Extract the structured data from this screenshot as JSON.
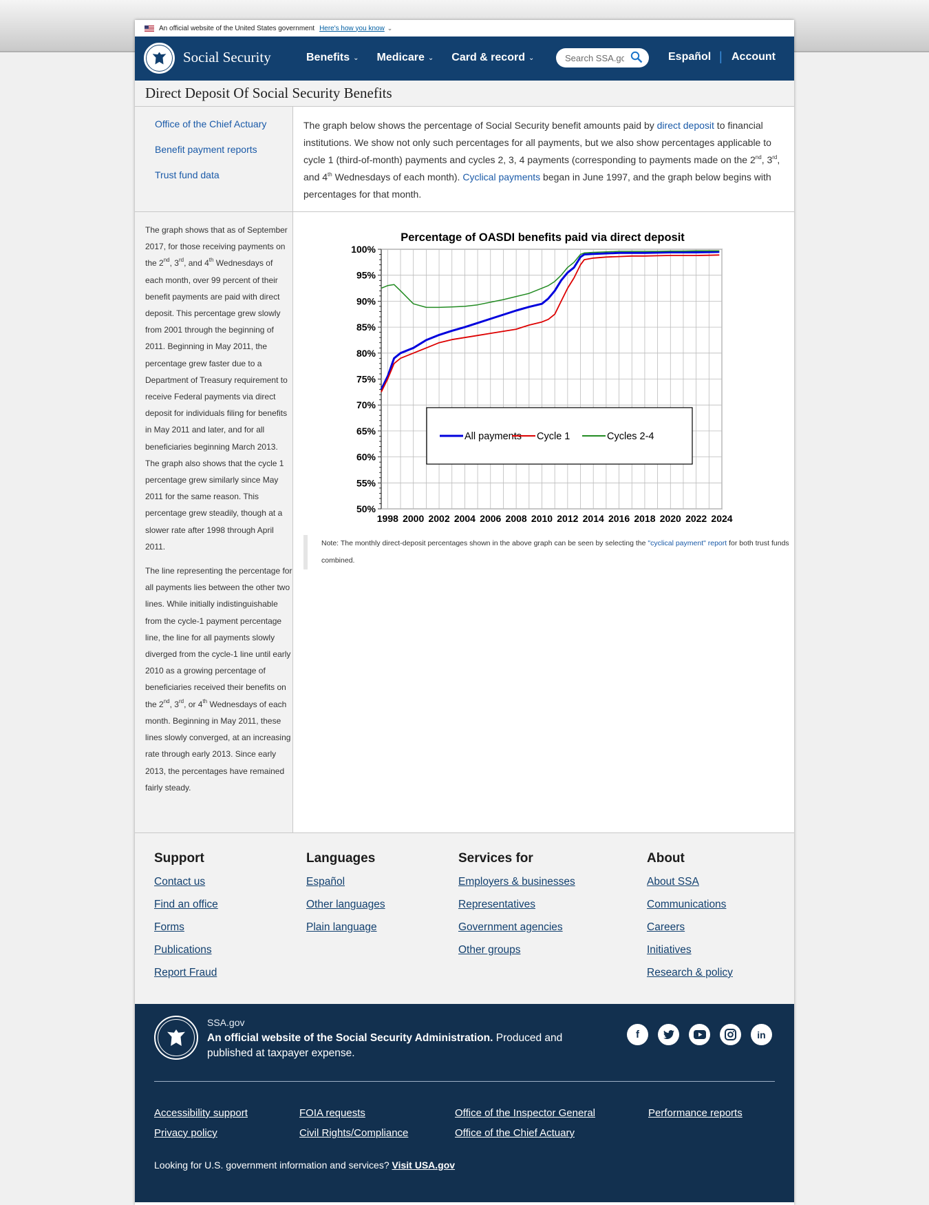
{
  "gov_banner": {
    "text": "An official website of the United States government",
    "how_link": "Here's how you know"
  },
  "header": {
    "brand": "Social Security",
    "nav": [
      "Benefits",
      "Medicare",
      "Card & record"
    ],
    "search_placeholder": "Search SSA.gov",
    "espanol": "Español",
    "separator": "|",
    "account": "Account"
  },
  "page_title": "Direct Deposit Of Social Security Benefits",
  "left_nav": [
    "Office of the Chief Actuary",
    "Benefit payment reports",
    "Trust fund data"
  ],
  "intro": {
    "t1": "The graph below shows the percentage of Social Security benefit amounts paid by ",
    "link1": "direct deposit",
    "t2": " to financial institutions. We show not only such percentages for all payments, but we also show percentages applicable to cycle 1 (third-of-month) payments and cycles 2, 3, 4 payments (corresponding to payments made on the 2",
    "sup_nd": "nd",
    "t3": ", 3",
    "sup_rd": "rd",
    "t4": ", and 4",
    "sup_th": "th",
    "t5": " Wednesdays of each month). ",
    "link2": "Cyclical payments",
    "t6": " began in June 1997, and the graph below begins with percentages for that month."
  },
  "sidebar": {
    "p1a": "The graph shows that as of September 2017, for those receiving payments on the 2",
    "p1b": ", 3",
    "p1c": ", and 4",
    "p1d": " Wednesdays of each month, over 99 percent of their benefit payments are paid with direct deposit. This percentage grew slowly from 2001 through the beginning of 2011. Beginning in May 2011, the percentage grew faster due to a Department of Treasury requirement to receive Federal payments via direct deposit for individuals filing for benefits in May 2011 and later, and for all beneficiaries beginning March 2013. The graph also shows that the cycle 1 percentage grew similarly since May 2011 for the same reason. This percentage grew steadily, though at a slower rate after 1998 through April 2011.",
    "p2a": "The line representing the percentage for all payments lies between the other two lines. While initially indistinguishable from the cycle-1 payment percentage line, the line for all payments slowly diverged from the cycle-1 line until early 2010 as a growing percentage of beneficiaries received their benefits on the 2",
    "p2b": ", 3",
    "p2c": ", or 4",
    "p2d": " Wednesdays of each month. Beginning in May 2011, these lines slowly converged, at an increasing rate through early 2013. Since early 2013, the percentages have remained fairly steady.",
    "nd": "nd",
    "rd": "rd",
    "th": "th"
  },
  "note": {
    "t1": "Note: The monthly direct-deposit percentages shown in the above graph can be seen by selecting the ",
    "link": "\"cyclical payment\" report",
    "t2": " for both trust funds combined."
  },
  "chart_data": {
    "type": "line",
    "title": "Percentage of OASDI benefits paid via direct deposit",
    "ylim": [
      50,
      100
    ],
    "xlim": [
      1997.5,
      2024
    ],
    "yticks": [
      "100%",
      "95%",
      "90%",
      "85%",
      "80%",
      "75%",
      "70%",
      "65%",
      "60%",
      "55%",
      "50%"
    ],
    "xticks": [
      "1998",
      "2000",
      "2002",
      "2004",
      "2006",
      "2008",
      "2010",
      "2012",
      "2014",
      "2016",
      "2018",
      "2020",
      "2022",
      "2024"
    ],
    "grid": true,
    "legend_position": "center",
    "series": [
      {
        "name": "All payments",
        "color": "#0000dd",
        "x": [
          1997.5,
          1998,
          1998.5,
          1999,
          2000,
          2001,
          2002,
          2003,
          2004,
          2005,
          2006,
          2007,
          2008,
          2009,
          2010,
          2010.5,
          2011,
          2011.5,
          2012,
          2012.5,
          2013,
          2013.3,
          2014,
          2015,
          2016,
          2017,
          2018,
          2019,
          2020,
          2021,
          2022,
          2023,
          2023.8
        ],
        "y": [
          73.0,
          75.5,
          79.0,
          80.0,
          81.0,
          82.5,
          83.5,
          84.3,
          85.0,
          85.8,
          86.6,
          87.4,
          88.2,
          88.9,
          89.5,
          90.5,
          92.0,
          94.0,
          95.5,
          96.5,
          98.5,
          99.0,
          99.1,
          99.2,
          99.3,
          99.3,
          99.3,
          99.35,
          99.4,
          99.4,
          99.4,
          99.45,
          99.5
        ]
      },
      {
        "name": "Cycle 1",
        "color": "#dd0000",
        "x": [
          1997.5,
          1998,
          1998.5,
          1999,
          2000,
          2001,
          2002,
          2003,
          2004,
          2005,
          2006,
          2007,
          2008,
          2009,
          2010,
          2010.5,
          2011,
          2011.5,
          2012,
          2012.5,
          2013,
          2013.3,
          2014,
          2015,
          2016,
          2017,
          2018,
          2019,
          2020,
          2021,
          2022,
          2023,
          2023.8
        ],
        "y": [
          72.5,
          75.0,
          78.0,
          79.0,
          80.0,
          81.0,
          82.0,
          82.6,
          83.0,
          83.4,
          83.8,
          84.2,
          84.6,
          85.4,
          86.0,
          86.5,
          87.5,
          90.0,
          92.5,
          94.5,
          97.0,
          98.0,
          98.3,
          98.5,
          98.6,
          98.7,
          98.7,
          98.75,
          98.8,
          98.8,
          98.8,
          98.85,
          98.9
        ]
      },
      {
        "name": "Cycles 2-4",
        "color": "#228b22",
        "x": [
          1997.5,
          1998,
          1998.5,
          1999,
          2000,
          2001,
          2002,
          2003,
          2004,
          2005,
          2006,
          2007,
          2008,
          2009,
          2010,
          2010.5,
          2011,
          2011.5,
          2012,
          2012.5,
          2013,
          2013.3,
          2014,
          2015,
          2016,
          2017,
          2018,
          2019,
          2020,
          2021,
          2022,
          2023,
          2023.8
        ],
        "y": [
          92.5,
          93.0,
          93.2,
          92.0,
          89.5,
          88.8,
          88.8,
          88.9,
          89.0,
          89.3,
          89.8,
          90.3,
          90.9,
          91.5,
          92.5,
          93.0,
          93.8,
          95.0,
          96.5,
          97.5,
          99.0,
          99.3,
          99.4,
          99.5,
          99.6,
          99.6,
          99.6,
          99.6,
          99.65,
          99.65,
          99.7,
          99.7,
          99.7
        ]
      }
    ]
  },
  "footer": {
    "cols": [
      {
        "title": "Support",
        "links": [
          "Contact us",
          "Find an office",
          "Forms",
          "Publications",
          "Report Fraud"
        ]
      },
      {
        "title": "Languages",
        "links": [
          "Español",
          "Other languages",
          "Plain language"
        ]
      },
      {
        "title": "Services for",
        "links": [
          "Employers & businesses",
          "Representatives",
          "Government agencies",
          "Other groups"
        ]
      },
      {
        "title": "About",
        "links": [
          "About SSA",
          "Communications",
          "Careers",
          "Initiatives",
          "Research & policy"
        ]
      }
    ],
    "site": "SSA.gov",
    "official_bold": "An official website of the Social Security Administration.",
    "official_rest": " Produced and published at taxpayer expense.",
    "social": [
      "facebook-icon",
      "twitter-icon",
      "youtube-icon",
      "instagram-icon",
      "linkedin-icon"
    ],
    "bottom_links": [
      "Accessibility support",
      "Privacy policy",
      "FOIA requests",
      "Civil Rights/Compliance",
      "Office of the Inspector General",
      "Office of the Chief Actuary",
      "Performance reports"
    ],
    "looking": "Looking for U.S. government information and services?",
    "visit": "Visit USA.gov"
  }
}
